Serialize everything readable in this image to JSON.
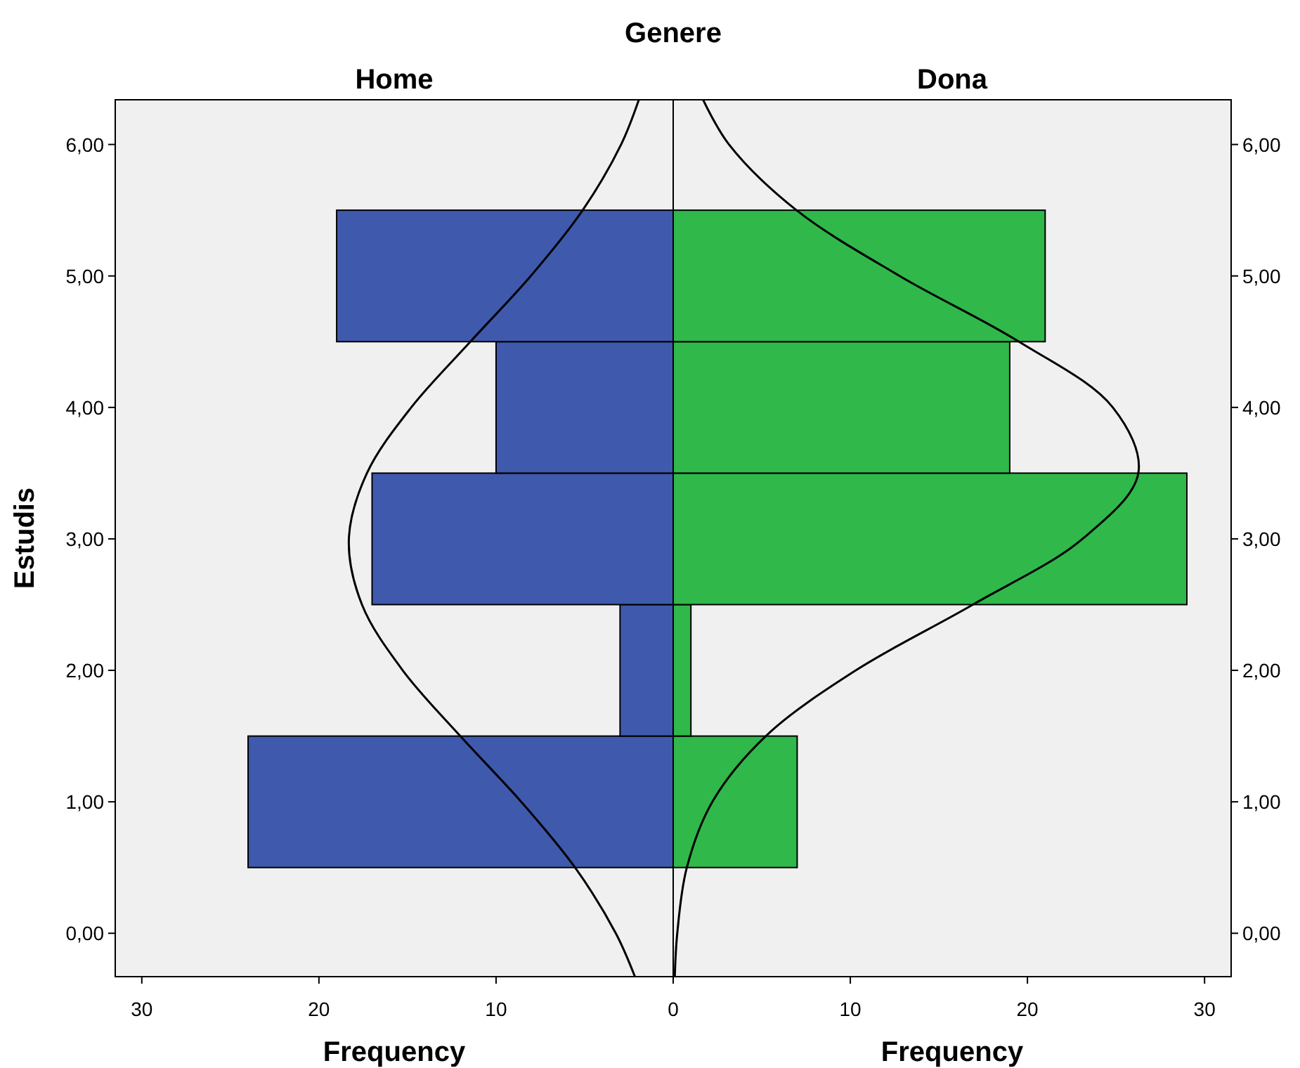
{
  "chart_data": [
    {
      "type": "histogram",
      "orientation": "horizontal",
      "title": "Home",
      "xlabel": "Frequency",
      "ylabel": "Estudis",
      "annotations": [
        "Genere"
      ],
      "bins": [
        0.5,
        1.5,
        2.5,
        3.5,
        4.5,
        5.5
      ],
      "values": [
        24,
        3,
        17,
        10,
        19
      ],
      "color": "#3f59ad",
      "series": [
        {
          "type": "line",
          "color": "#000000",
          "x": [
            -0.33,
            0,
            0.5,
            1,
            1.5,
            2,
            2.5,
            3,
            3.5,
            4,
            4.5,
            5,
            5.5,
            6,
            6.34
          ],
          "values": [
            2.16,
            3.24,
            5.54,
            8.58,
            12.02,
            15.27,
            17.57,
            18.31,
            17.29,
            14.79,
            11.45,
            8.04,
            5.11,
            2.94,
            1.94
          ]
        }
      ],
      "xlim": [
        31.5,
        0
      ],
      "xticks": [
        30,
        20,
        10
      ],
      "ylim": [
        -0.33,
        6.34
      ],
      "yticks": [
        {
          "value": 0,
          "label": "0,00"
        },
        {
          "value": 1,
          "label": "1,00"
        },
        {
          "value": 2,
          "label": "2,00"
        },
        {
          "value": 3,
          "label": "3,00"
        },
        {
          "value": 4,
          "label": "4,00"
        },
        {
          "value": 5,
          "label": "5,00"
        },
        {
          "value": 6,
          "label": "6,00"
        }
      ],
      "grid": false
    },
    {
      "type": "histogram",
      "orientation": "horizontal",
      "title": "Dona",
      "xlabel": "Frequency",
      "bins": [
        0.5,
        1.5,
        2.5,
        3.5,
        4.5,
        5.5
      ],
      "values": [
        7,
        1,
        29,
        19,
        21
      ],
      "color": "#30b84a",
      "series": [
        {
          "type": "line",
          "color": "#000000",
          "x": [
            -0.33,
            0,
            0.5,
            1,
            1.5,
            2,
            2.5,
            3,
            3.5,
            4,
            4.5,
            5,
            5.5,
            6,
            6.34
          ],
          "values": [
            0.09,
            0.23,
            0.77,
            2.21,
            5.23,
            10.31,
            16.92,
            23.11,
            26.26,
            24.82,
            19.52,
            12.78,
            6.96,
            3.15,
            1.69
          ]
        }
      ],
      "xlim": [
        0,
        31.5
      ],
      "xticks": [
        0,
        10,
        20,
        30
      ],
      "ylim": [
        -0.33,
        6.34
      ],
      "yticks": [
        {
          "value": 0,
          "label": "0,00"
        },
        {
          "value": 1,
          "label": "1,00"
        },
        {
          "value": 2,
          "label": "2,00"
        },
        {
          "value": 3,
          "label": "3,00"
        },
        {
          "value": 4,
          "label": "4,00"
        },
        {
          "value": 5,
          "label": "5,00"
        },
        {
          "value": 6,
          "label": "6,00"
        }
      ],
      "grid": false
    }
  ]
}
